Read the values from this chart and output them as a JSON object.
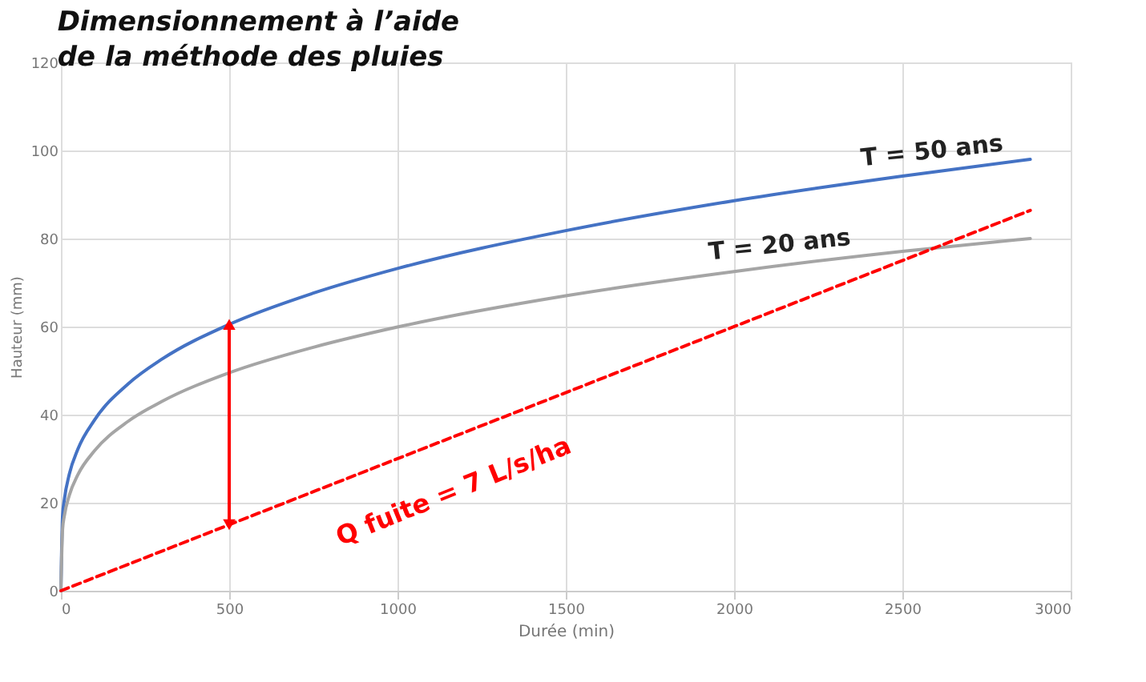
{
  "chart_data": {
    "type": "line",
    "title": "Dimensionnement à l’aide\nde la méthode des pluies",
    "xlabel": "Durée (min)",
    "ylabel": "Hauteur (mm)",
    "x": [
      0,
      5,
      10,
      25,
      50,
      100,
      200,
      300,
      500,
      750,
      1000,
      1500,
      2000,
      2500,
      2880
    ],
    "series": [
      {
        "name": "T = 50 ans",
        "color": "#4472c4",
        "values": [
          0,
          17.1,
          20.6,
          26.5,
          32.1,
          38.8,
          47.0,
          52.6,
          60.5,
          67.6,
          73.2,
          81.8,
          88.6,
          94.2,
          98
        ]
      },
      {
        "name": "T = 20 ans",
        "color": "#a5a5a5",
        "values": [
          0,
          14.0,
          16.9,
          21.7,
          26.3,
          31.8,
          38.5,
          43.0,
          49.5,
          55.3,
          59.9,
          67.0,
          72.5,
          77.1,
          80
        ]
      },
      {
        "color": "#ff0000",
        "line_style": "dashed",
        "x": [
          0,
          2880
        ],
        "values": [
          0,
          86.4
        ]
      },
      {
        "color": "#ff0000",
        "marker": "triangle",
        "x": [
          500,
          500
        ],
        "values": [
          15,
          60.5
        ]
      }
    ],
    "annotations": [
      "Q fuite = 7 L/s/ha"
    ],
    "xlim": [
      0,
      3000
    ],
    "xticks": [
      0,
      500,
      1000,
      1500,
      2000,
      2500,
      3000
    ],
    "ylim": [
      0,
      120
    ],
    "yticks": [
      0,
      20,
      40,
      60,
      80,
      100,
      120
    ],
    "grid": true
  }
}
